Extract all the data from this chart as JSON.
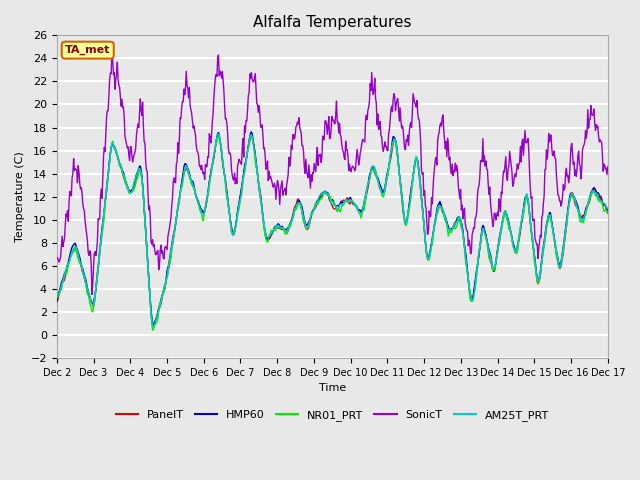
{
  "title": "Alfalfa Temperatures",
  "xlabel": "Time",
  "ylabel": "Temperature (C)",
  "ylim": [
    -2,
    26
  ],
  "yticks": [
    -2,
    0,
    2,
    4,
    6,
    8,
    10,
    12,
    14,
    16,
    18,
    20,
    22,
    24,
    26
  ],
  "xlim_days": [
    2,
    17
  ],
  "xtick_days": [
    2,
    3,
    4,
    5,
    6,
    7,
    8,
    9,
    10,
    11,
    12,
    13,
    14,
    15,
    16,
    17
  ],
  "annotation_text": "TA_met",
  "annotation_facecolor": "#FFFF99",
  "annotation_edgecolor": "#CC6600",
  "annotation_textcolor": "#880000",
  "bg_color": "#E8E8E8",
  "plot_bg_color": "#E8E8E8",
  "grid_color": "#FFFFFF",
  "lines": [
    {
      "label": "PanelT",
      "color": "#DD0000",
      "lw": 1.0
    },
    {
      "label": "HMP60",
      "color": "#0000CC",
      "lw": 1.0
    },
    {
      "label": "NR01_PRT",
      "color": "#00EE00",
      "lw": 1.0
    },
    {
      "label": "SonicT",
      "color": "#9900CC",
      "lw": 1.0
    },
    {
      "label": "AM25T_PRT",
      "color": "#00CCCC",
      "lw": 1.0
    }
  ],
  "title_fontsize": 11
}
